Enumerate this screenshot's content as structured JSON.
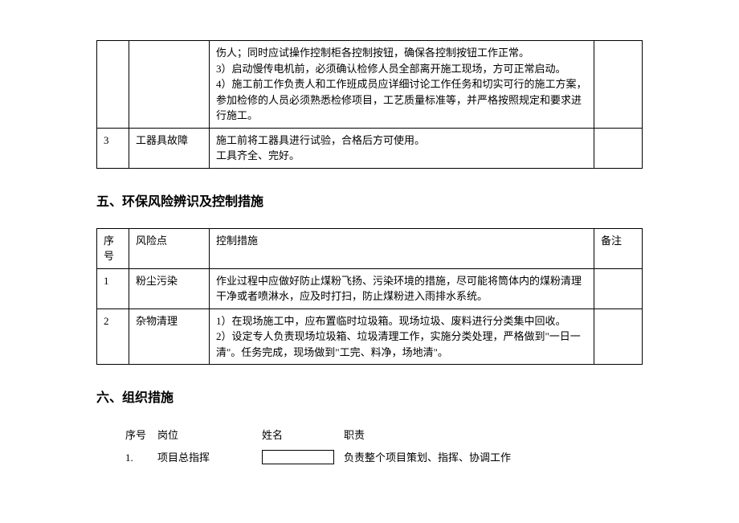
{
  "table1": {
    "rows": [
      {
        "seq": "",
        "risk": "",
        "measure": "伤人；同时应试操作控制柜各控制按钮，确保各控制按钮工作正常。\n3）启动慢传电机前，必须确认检修人员全部离开施工现场，方可正常启动。\n4）施工前工作负责人和工作班成员应详细讨论工作任务和切实可行的施工方案，参加检修的人员必须熟悉检修项目，工艺质量标准等，并严格按照规定和要求进行施工。",
        "note": ""
      },
      {
        "seq": "3",
        "risk": "工器具故障",
        "measure": "施工前将工器具进行试验，合格后方可使用。\n工具齐全、完好。",
        "note": ""
      }
    ]
  },
  "section5": {
    "title": "五、环保风险辨识及控制措施",
    "headers": {
      "seq": "序号",
      "risk": "风险点",
      "measure": "控制措施",
      "note": "备注"
    },
    "rows": [
      {
        "seq": "1",
        "risk": "粉尘污染",
        "measure": "作业过程中应做好防止煤粉飞扬、污染环境的措施，尽可能将筒体内的煤粉清理干净或者喷淋水，应及时打扫，防止煤粉进入雨排水系统。",
        "note": ""
      },
      {
        "seq": "2",
        "risk": "杂物清理",
        "measure": "1）在现场施工中，应布置临时垃圾箱。现场垃圾、废料进行分类集中回收。\n2）设定专人负责现场垃圾箱、垃圾清理工作，实施分类处理，严格做到\"一日一清\"。任务完成，现场做到\"工完、料净，场地清\"。",
        "note": ""
      }
    ]
  },
  "section6": {
    "title": "六、组织措施",
    "headers": {
      "seq": "序号",
      "pos": "岗位",
      "name": "姓名",
      "duty": "职责"
    },
    "rows": [
      {
        "seq": "1.",
        "pos": "项目总指挥",
        "name": "",
        "duty": "负责整个项目策划、指挥、协调工作"
      }
    ]
  }
}
